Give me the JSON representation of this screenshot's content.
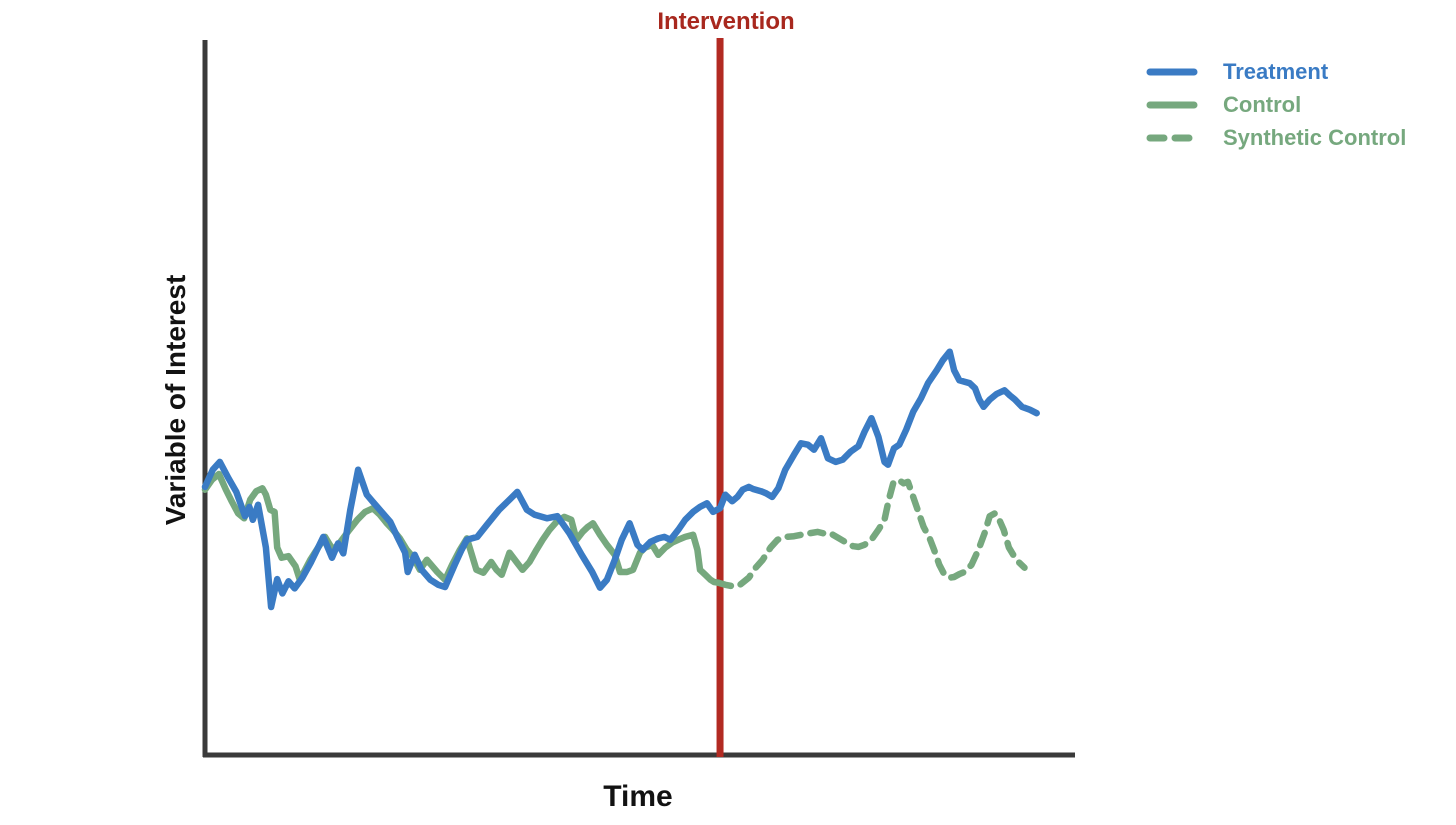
{
  "chart": {
    "intervention_label": "Intervention",
    "intervention_label_color": "#a8281e",
    "intervention_line_color": "#b22a22",
    "x_axis_label": "Time",
    "y_axis_label": "Variable of Interest",
    "axis_color": "#3a3a3a",
    "background_color": "#ffffff"
  },
  "legend": {
    "items": [
      {
        "label": "Treatment",
        "color": "#3a7bc4",
        "style": "solid"
      },
      {
        "label": "Control",
        "color": "#76a87e",
        "style": "solid"
      },
      {
        "label": "Synthetic Control",
        "color": "#76a87e",
        "style": "dashed"
      }
    ]
  },
  "chart_data": {
    "type": "line",
    "title": "Intervention",
    "xlabel": "Time",
    "ylabel": "Variable of Interest",
    "x_range": [
      0,
      100
    ],
    "y_range": [
      0,
      100
    ],
    "grid": false,
    "axes_ticks": "none",
    "legend_position": "top-right",
    "intervention_x": 59.2,
    "annotations": [
      {
        "text": "Intervention",
        "x": 59.2,
        "position": "top",
        "color": "#a8281e"
      }
    ],
    "series": [
      {
        "name": "Treatment",
        "color": "#3a7bc4",
        "style": "solid",
        "points": [
          [
            0,
            37.5
          ],
          [
            0.9,
            39.9
          ],
          [
            1.7,
            41
          ],
          [
            2.7,
            38.7
          ],
          [
            3.6,
            36.8
          ],
          [
            4.6,
            33.4
          ],
          [
            5.1,
            34.7
          ],
          [
            5.5,
            32.9
          ],
          [
            6.1,
            35
          ],
          [
            7,
            29
          ],
          [
            7.6,
            20.7
          ],
          [
            8.3,
            24.6
          ],
          [
            8.9,
            22.6
          ],
          [
            9.6,
            24.3
          ],
          [
            10.3,
            23.3
          ],
          [
            11.2,
            24.8
          ],
          [
            12.2,
            27
          ],
          [
            13.6,
            30.5
          ],
          [
            14.6,
            27.6
          ],
          [
            15.3,
            29.6
          ],
          [
            15.9,
            28.2
          ],
          [
            16.7,
            34.3
          ],
          [
            17.6,
            39.9
          ],
          [
            18.6,
            36.4
          ],
          [
            19.3,
            35.4
          ],
          [
            20.3,
            34
          ],
          [
            21.3,
            32.6
          ],
          [
            22.1,
            30.5
          ],
          [
            23,
            28.3
          ],
          [
            23.3,
            25.6
          ],
          [
            24.1,
            28
          ],
          [
            24.9,
            25.9
          ],
          [
            25.9,
            24.5
          ],
          [
            26.8,
            23.8
          ],
          [
            27.6,
            23.5
          ],
          [
            28.7,
            26.6
          ],
          [
            29.5,
            28.7
          ],
          [
            30.1,
            30.1
          ],
          [
            31.3,
            30.5
          ],
          [
            32.4,
            32.2
          ],
          [
            33.8,
            34.3
          ],
          [
            35,
            35.7
          ],
          [
            35.9,
            36.8
          ],
          [
            37,
            34.3
          ],
          [
            37.9,
            33.6
          ],
          [
            39.3,
            33.1
          ],
          [
            40.5,
            33.4
          ],
          [
            41.9,
            31
          ],
          [
            43.3,
            28
          ],
          [
            44.5,
            25.6
          ],
          [
            45.4,
            23.4
          ],
          [
            46.2,
            24.5
          ],
          [
            47.1,
            27.3
          ],
          [
            47.9,
            30.1
          ],
          [
            48.8,
            32.4
          ],
          [
            49.7,
            29.4
          ],
          [
            50.3,
            28.7
          ],
          [
            51.2,
            29.8
          ],
          [
            52.1,
            30.3
          ],
          [
            52.8,
            30.5
          ],
          [
            53.5,
            30.1
          ],
          [
            54.4,
            31.5
          ],
          [
            55.2,
            32.9
          ],
          [
            56.1,
            34
          ],
          [
            56.9,
            34.7
          ],
          [
            57.7,
            35.2
          ],
          [
            58.4,
            34
          ],
          [
            59.2,
            34.5
          ],
          [
            59.8,
            36.4
          ],
          [
            60.6,
            35.5
          ],
          [
            61.2,
            36.1
          ],
          [
            61.8,
            37.1
          ],
          [
            62.5,
            37.5
          ],
          [
            63,
            37.2
          ],
          [
            63.9,
            36.9
          ],
          [
            64.5,
            36.6
          ],
          [
            65.2,
            36.1
          ],
          [
            65.9,
            37.3
          ],
          [
            66.7,
            39.9
          ],
          [
            67.7,
            42
          ],
          [
            68.5,
            43.6
          ],
          [
            69.3,
            43.4
          ],
          [
            70,
            42.7
          ],
          [
            70.8,
            44.3
          ],
          [
            71.6,
            41.5
          ],
          [
            72.5,
            41
          ],
          [
            73.3,
            41.3
          ],
          [
            74.2,
            42.4
          ],
          [
            75.1,
            43.2
          ],
          [
            75.8,
            45.2
          ],
          [
            76.6,
            47.1
          ],
          [
            77.4,
            44.5
          ],
          [
            78.1,
            41
          ],
          [
            78.5,
            40.6
          ],
          [
            79.2,
            42.9
          ],
          [
            79.8,
            43.4
          ],
          [
            80.6,
            45.5
          ],
          [
            81.4,
            48
          ],
          [
            82.3,
            49.9
          ],
          [
            83.1,
            52
          ],
          [
            84.1,
            53.8
          ],
          [
            84.8,
            55.2
          ],
          [
            85.6,
            56.4
          ],
          [
            86.1,
            53.8
          ],
          [
            86.7,
            52.4
          ],
          [
            87.3,
            52.2
          ],
          [
            87.9,
            52
          ],
          [
            88.5,
            51.3
          ],
          [
            89,
            49.7
          ],
          [
            89.5,
            48.7
          ],
          [
            90.2,
            49.7
          ],
          [
            91,
            50.5
          ],
          [
            91.9,
            51
          ],
          [
            92.5,
            50.3
          ],
          [
            93.1,
            49.7
          ],
          [
            93.9,
            48.7
          ],
          [
            94.8,
            48.3
          ],
          [
            95.6,
            47.8
          ]
        ]
      },
      {
        "name": "Control",
        "color": "#76a87e",
        "style": "solid",
        "points": [
          [
            0,
            37.1
          ],
          [
            0.8,
            38.5
          ],
          [
            1.6,
            39.3
          ],
          [
            2.4,
            37.1
          ],
          [
            3.1,
            35.4
          ],
          [
            3.8,
            33.8
          ],
          [
            4.5,
            33.1
          ],
          [
            5.2,
            35.7
          ],
          [
            5.9,
            36.9
          ],
          [
            6.6,
            37.3
          ],
          [
            7,
            36.4
          ],
          [
            7.5,
            34.3
          ],
          [
            8,
            34
          ],
          [
            8.3,
            29
          ],
          [
            8.8,
            27.6
          ],
          [
            9.6,
            27.8
          ],
          [
            10.4,
            26.4
          ],
          [
            10.9,
            24.5
          ],
          [
            12.1,
            27.3
          ],
          [
            13,
            29
          ],
          [
            13.8,
            30.5
          ],
          [
            14.7,
            28.7
          ],
          [
            15.5,
            29.7
          ],
          [
            16.6,
            31.5
          ],
          [
            17.5,
            32.9
          ],
          [
            18.4,
            34
          ],
          [
            19.3,
            34.5
          ],
          [
            20.1,
            33.6
          ],
          [
            20.9,
            32.4
          ],
          [
            21.6,
            31.5
          ],
          [
            22.4,
            30.3
          ],
          [
            23.2,
            28.7
          ],
          [
            23.9,
            27.7
          ],
          [
            24.7,
            25.9
          ],
          [
            25.5,
            27.3
          ],
          [
            26.7,
            25.6
          ],
          [
            27.6,
            24.5
          ],
          [
            28.4,
            26.6
          ],
          [
            29.3,
            28.7
          ],
          [
            30.1,
            30.3
          ],
          [
            31.2,
            25.9
          ],
          [
            32,
            25.5
          ],
          [
            32.9,
            27
          ],
          [
            33.5,
            25.9
          ],
          [
            34.1,
            25.2
          ],
          [
            34.6,
            26.9
          ],
          [
            35,
            28.3
          ],
          [
            35.8,
            27
          ],
          [
            36.5,
            25.9
          ],
          [
            37.3,
            27
          ],
          [
            38.1,
            28.7
          ],
          [
            38.8,
            30.1
          ],
          [
            39.6,
            31.5
          ],
          [
            40.4,
            32.6
          ],
          [
            41.3,
            33.3
          ],
          [
            42.1,
            32.9
          ],
          [
            42.7,
            30.1
          ],
          [
            43.4,
            31.2
          ],
          [
            44,
            31.9
          ],
          [
            44.6,
            32.4
          ],
          [
            45.4,
            30.8
          ],
          [
            46.2,
            29.4
          ],
          [
            47.1,
            28
          ],
          [
            47.7,
            25.6
          ],
          [
            48.5,
            25.6
          ],
          [
            49.2,
            25.9
          ],
          [
            50,
            28.3
          ],
          [
            50.6,
            29
          ],
          [
            51.4,
            29.4
          ],
          [
            52.1,
            28
          ],
          [
            52.9,
            29
          ],
          [
            53.7,
            29.7
          ],
          [
            54.4,
            30.1
          ],
          [
            55.2,
            30.5
          ],
          [
            56.1,
            30.8
          ],
          [
            56.6,
            28.7
          ],
          [
            56.9,
            25.9
          ],
          [
            57.5,
            25.2
          ],
          [
            58.1,
            24.5
          ],
          [
            58.5,
            24.2
          ],
          [
            59,
            24.1
          ]
        ]
      },
      {
        "name": "Synthetic Control",
        "color": "#76a87e",
        "style": "dashed",
        "points": [
          [
            59,
            24.1
          ],
          [
            59.8,
            23.8
          ],
          [
            60.7,
            23.6
          ],
          [
            61.5,
            23.8
          ],
          [
            62.5,
            24.8
          ],
          [
            63.3,
            26.2
          ],
          [
            64.1,
            27.3
          ],
          [
            65,
            29
          ],
          [
            65.8,
            30.1
          ],
          [
            66.7,
            30.5
          ],
          [
            67.7,
            30.6
          ],
          [
            68.5,
            30.8
          ],
          [
            69.4,
            31
          ],
          [
            70.4,
            31.2
          ],
          [
            71.1,
            31
          ],
          [
            71.9,
            31
          ],
          [
            72.9,
            30.3
          ],
          [
            73.7,
            29.7
          ],
          [
            74.5,
            29.2
          ],
          [
            75.1,
            29.1
          ],
          [
            75.8,
            29.4
          ],
          [
            76.6,
            30.1
          ],
          [
            77.4,
            31.5
          ],
          [
            78.1,
            32.9
          ],
          [
            78.6,
            35.7
          ],
          [
            79.1,
            38
          ],
          [
            79.7,
            38.5
          ],
          [
            80.3,
            38
          ],
          [
            80.8,
            38.2
          ],
          [
            81.4,
            36.1
          ],
          [
            82,
            34
          ],
          [
            82.6,
            31.9
          ],
          [
            83.3,
            30.3
          ],
          [
            83.8,
            28.7
          ],
          [
            84.4,
            26.6
          ],
          [
            85,
            25.2
          ],
          [
            85.6,
            24.8
          ],
          [
            86.1,
            24.9
          ],
          [
            86.7,
            25.3
          ],
          [
            87.3,
            25.6
          ],
          [
            88.1,
            26.6
          ],
          [
            88.9,
            28.7
          ],
          [
            89.6,
            31
          ],
          [
            90.2,
            33.4
          ],
          [
            90.8,
            33.8
          ],
          [
            91.3,
            32.9
          ],
          [
            91.8,
            31.5
          ],
          [
            92.4,
            29
          ],
          [
            93.1,
            27.6
          ],
          [
            93.6,
            26.9
          ],
          [
            94.2,
            26.2
          ]
        ]
      }
    ]
  }
}
